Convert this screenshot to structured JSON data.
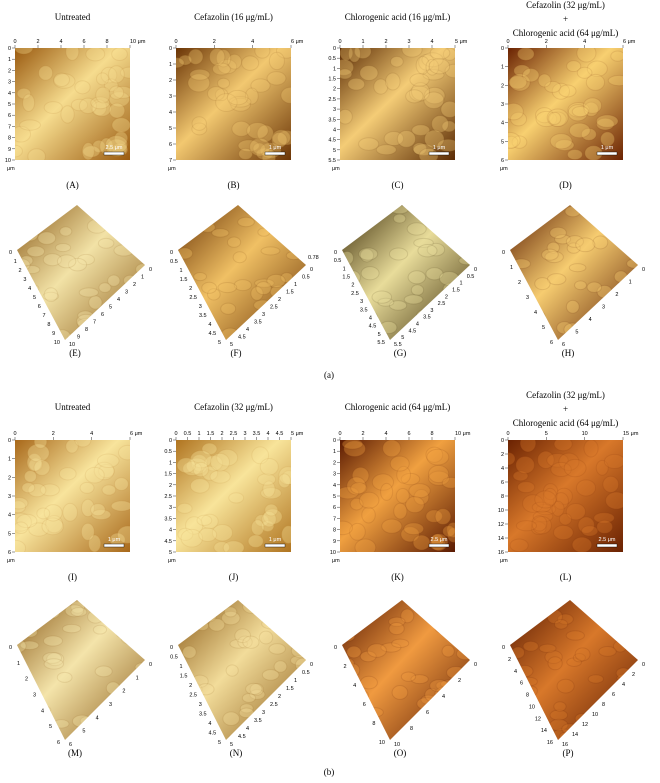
{
  "section_labels": [
    "(a)",
    "(b)"
  ],
  "panels": [
    {
      "label": "(A)",
      "title": [
        "Untreated"
      ],
      "xticks": [
        "0",
        "2",
        "4",
        "6",
        "8",
        "10 μm"
      ],
      "yticks": [
        "0",
        "1",
        "2",
        "3",
        "4",
        "5",
        "6",
        "7",
        "8",
        "9",
        "10"
      ],
      "unit": "μm",
      "scale_bar": "2.5 μm",
      "colors": [
        "#9a5a10",
        "#f6dc8e"
      ]
    },
    {
      "label": "(B)",
      "title": [
        "Cefazolin (16 μg/mL)"
      ],
      "xticks": [
        "0",
        "2",
        "4",
        "6 μm"
      ],
      "yticks": [
        "0",
        "1",
        "2",
        "3",
        "4",
        "5",
        "6",
        "7"
      ],
      "unit": "μm",
      "scale_bar": "1 μm",
      "colors": [
        "#6a3406",
        "#f2c870"
      ]
    },
    {
      "label": "(C)",
      "title": [
        "Chlorogenic acid (16 μg/mL)"
      ],
      "xticks": [
        "0",
        "1",
        "2",
        "3",
        "4",
        "5 μm"
      ],
      "yticks": [
        "0",
        "0.5",
        "1",
        "1.5",
        "2",
        "2.5",
        "3",
        "3.5",
        "4",
        "4.5",
        "5",
        "5.5"
      ],
      "unit": "μm",
      "scale_bar": "1 μm",
      "colors": [
        "#5a2a04",
        "#f4cc76"
      ]
    },
    {
      "label": "(D)",
      "title": [
        "Cefazolin (32 μg/mL)",
        "+",
        "Chlorogenic acid (64 μg/mL)"
      ],
      "xticks": [
        "0",
        "2",
        "4",
        "6 μm"
      ],
      "yticks": [
        "0",
        "1",
        "2",
        "3",
        "4",
        "5",
        "6"
      ],
      "unit": "μm",
      "scale_bar": "1 μm",
      "colors": [
        "#6a2202",
        "#f8d070"
      ]
    },
    {
      "label": "(E)",
      "axis1": [
        "0",
        "1",
        "2",
        "3",
        "4",
        "5",
        "6",
        "7",
        "8",
        "9",
        "10"
      ],
      "axis2": [
        "10",
        "9",
        "8",
        "7",
        "6",
        "5",
        "4",
        "3",
        "2",
        "1",
        "0"
      ],
      "colors": [
        "#8a5a18",
        "#f2e2a6"
      ]
    },
    {
      "label": "(F)",
      "axis1": [
        "0",
        "0.5",
        "1",
        "1.5",
        "2",
        "2.5",
        "3",
        "3.5",
        "4",
        "4.5",
        "5"
      ],
      "axis2": [
        "5",
        "4.5",
        "4",
        "3.5",
        "3",
        "2.5",
        "2",
        "1.5",
        "1",
        "0.5",
        "0"
      ],
      "z_label": "0.78",
      "colors": [
        "#6a3406",
        "#f0c064"
      ]
    },
    {
      "label": "(G)",
      "axis1": [
        "0",
        "0.5",
        "1",
        "1.5",
        "2",
        "2.5",
        "3",
        "3.5",
        "4",
        "4.5",
        "5",
        "5.5"
      ],
      "axis2": [
        "5.5",
        "5",
        "4.5",
        "4",
        "3.5",
        "3",
        "2.5",
        "2",
        "1.5",
        "1",
        "0.5",
        "0"
      ],
      "colors": [
        "#3a2a08",
        "#e8dc9a"
      ]
    },
    {
      "label": "(H)",
      "axis1": [
        "0",
        "1",
        "2",
        "3",
        "4",
        "5",
        "6"
      ],
      "axis2": [
        "6",
        "5",
        "4",
        "3",
        "2",
        "1",
        "0"
      ],
      "colors": [
        "#5a1c02",
        "#f6cc70"
      ]
    },
    {
      "label": "(I)",
      "title": [
        "Untreated"
      ],
      "xticks": [
        "0",
        "2",
        "4",
        "6 μm"
      ],
      "yticks": [
        "0",
        "1",
        "2",
        "3",
        "4",
        "5",
        "6"
      ],
      "unit": "μm",
      "scale_bar": "1 μm",
      "colors": [
        "#a8681a",
        "#f8e49c"
      ]
    },
    {
      "label": "(J)",
      "title": [
        "Cefazolin (32 μg/mL)"
      ],
      "xticks": [
        "0",
        "0.5",
        "1",
        "1.5",
        "2",
        "2.5",
        "3",
        "3.5",
        "4",
        "4.5",
        "5 μm"
      ],
      "yticks": [
        "0",
        "0.5",
        "1",
        "1.5",
        "2",
        "2.5",
        "3",
        "3.5",
        "4",
        "4.5",
        "5"
      ],
      "unit": "μm",
      "scale_bar": "1 μm",
      "colors": [
        "#b07420",
        "#f8e49a"
      ]
    },
    {
      "label": "(K)",
      "title": [
        "Chlorogenic acid (64 μg/mL)"
      ],
      "xticks": [
        "0",
        "2",
        "4",
        "6",
        "8",
        "10 μm"
      ],
      "yticks": [
        "0",
        "1",
        "2",
        "3",
        "4",
        "5",
        "6",
        "7",
        "8",
        "9",
        "10"
      ],
      "unit": "μm",
      "scale_bar": "2.5 μm",
      "colors": [
        "#5a1a02",
        "#f0a040"
      ]
    },
    {
      "label": "(L)",
      "title": [
        "Cefazolin (32 μg/mL)",
        "+",
        "Chlorogenic acid (64 μg/mL)"
      ],
      "xticks": [
        "0",
        "5",
        "10",
        "15 μm"
      ],
      "yticks": [
        "0",
        "2",
        "4",
        "6",
        "8",
        "10",
        "12",
        "14",
        "16"
      ],
      "unit": "μm",
      "scale_bar": "2.5 μm",
      "colors": [
        "#6a2202",
        "#d8782a"
      ]
    },
    {
      "label": "(M)",
      "axis1": [
        "0",
        "1",
        "2",
        "3",
        "4",
        "5",
        "6"
      ],
      "axis2": [
        "6",
        "5",
        "4",
        "3",
        "2",
        "1",
        "0"
      ],
      "colors": [
        "#8a5a18",
        "#f4e4aa"
      ]
    },
    {
      "label": "(N)",
      "axis1": [
        "0",
        "0.5",
        "1",
        "1.5",
        "2",
        "2.5",
        "3",
        "3.5",
        "4",
        "4.5",
        "5"
      ],
      "axis2": [
        "5",
        "4.5",
        "4",
        "3.5",
        "3",
        "2.5",
        "2",
        "1.5",
        "1",
        "0.5",
        "0"
      ],
      "colors": [
        "#8a5a18",
        "#f2dc9a"
      ]
    },
    {
      "label": "(O)",
      "axis1": [
        "0",
        "2",
        "4",
        "6",
        "8",
        "10"
      ],
      "axis2": [
        "10",
        "8",
        "6",
        "4",
        "2",
        "0"
      ],
      "colors": [
        "#5a1a02",
        "#f09a40"
      ]
    },
    {
      "label": "(P)",
      "axis1": [
        "0",
        "2",
        "4",
        "6",
        "8",
        "10",
        "12",
        "14",
        "16"
      ],
      "axis2": [
        "16",
        "14",
        "12",
        "10",
        "8",
        "6",
        "4",
        "2",
        "0"
      ],
      "colors": [
        "#5a1a02",
        "#d8782a"
      ]
    }
  ]
}
